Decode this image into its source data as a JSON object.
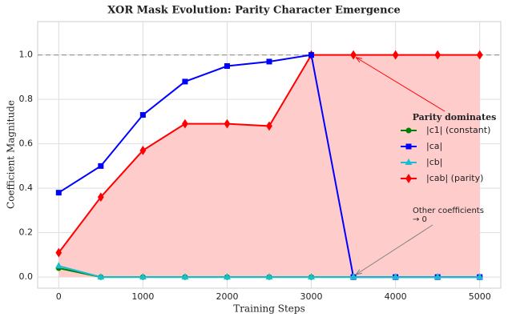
{
  "chart_data": {
    "type": "line",
    "title": "XOR Mask Evolution: Parity Character Emergence",
    "x_label": "Training Steps",
    "y_label": "Coefficient Magnitude",
    "x": [
      0,
      500,
      1000,
      1500,
      2000,
      2500,
      3000,
      3500,
      4000,
      4500,
      5000
    ],
    "series": [
      {
        "name": "|c1| (constant)",
        "color": "#008000",
        "marker": "circle",
        "values": [
          0.04,
          0,
          0,
          0,
          0,
          0,
          0,
          0,
          0,
          0,
          0
        ]
      },
      {
        "name": "|ca|",
        "color": "#0000ff",
        "marker": "square",
        "values": [
          0.38,
          0.5,
          0.73,
          0.88,
          0.95,
          0.97,
          1.0,
          0,
          0,
          0,
          0
        ]
      },
      {
        "name": "|cb|",
        "color": "#17becf",
        "marker": "triangle",
        "values": [
          0.05,
          0,
          0,
          0,
          0,
          0,
          0,
          0,
          0,
          0,
          0
        ]
      },
      {
        "name": "|cab| (parity)",
        "color": "#ff0000",
        "marker": "diamond",
        "fill": true,
        "fill_color": "#ffcccc",
        "values": [
          0.11,
          0.36,
          0.57,
          0.69,
          0.69,
          0.68,
          1.0,
          1.0,
          1.0,
          1.0,
          1.0
        ]
      }
    ],
    "reference_line": 1.0,
    "annotations": [
      {
        "lines": [
          "Parity dominates"
        ],
        "color": "#ff0000",
        "bold": true,
        "x_at": 3500,
        "y_at": 1.0
      },
      {
        "lines": [
          "Other coefficients",
          "→ 0"
        ],
        "color": "#808080",
        "bold": false,
        "x_at": 3500,
        "y_at": 0
      }
    ],
    "xlim": [
      -250,
      5250
    ],
    "ylim": [
      -0.05,
      1.15
    ],
    "xticks": [
      0,
      1000,
      2000,
      3000,
      4000,
      5000
    ],
    "yticks": [
      {
        "value": 0,
        "label": "0.0"
      },
      0.2,
      0.4,
      0.6,
      0.8,
      {
        "value": 1,
        "label": "1.0"
      }
    ],
    "grid": true,
    "legend": "center right"
  }
}
